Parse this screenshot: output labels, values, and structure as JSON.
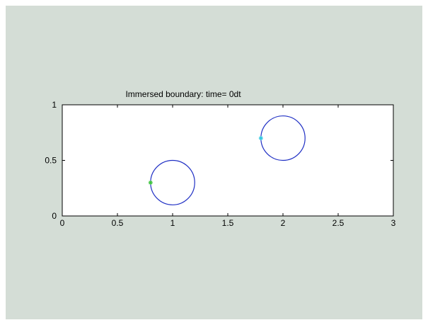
{
  "colors": {
    "figure_bg": "#d4ddd6",
    "axes_bg": "#ffffff",
    "circle": "#1f2fc4",
    "marker_green": "#3cc43c",
    "marker_cyan": "#33c8e0",
    "axis_line": "#000000"
  },
  "chart_data": {
    "type": "scatter",
    "title": "Immersed boundary: time= 0dt",
    "xlabel": "",
    "ylabel": "",
    "xlim": [
      0,
      3
    ],
    "ylim": [
      0,
      1
    ],
    "grid": false,
    "xticks": [
      0,
      0.5,
      1,
      1.5,
      2,
      2.5,
      3
    ],
    "xtick_labels": [
      "0",
      "0.5",
      "1",
      "1.5",
      "2",
      "2.5",
      "3"
    ],
    "yticks": [
      0,
      0.5,
      1
    ],
    "ytick_labels": [
      "0",
      "0.5",
      "1"
    ],
    "circles": [
      {
        "center": [
          1.0,
          0.3
        ],
        "radius": 0.2,
        "color": "#1f2fc4"
      },
      {
        "center": [
          2.0,
          0.7
        ],
        "radius": 0.2,
        "color": "#1f2fc4"
      }
    ],
    "markers": [
      {
        "x": 0.8,
        "y": 0.3,
        "color": "#3cc43c",
        "shape": "star"
      },
      {
        "x": 1.8,
        "y": 0.7,
        "color": "#33c8e0",
        "shape": "star"
      }
    ]
  }
}
